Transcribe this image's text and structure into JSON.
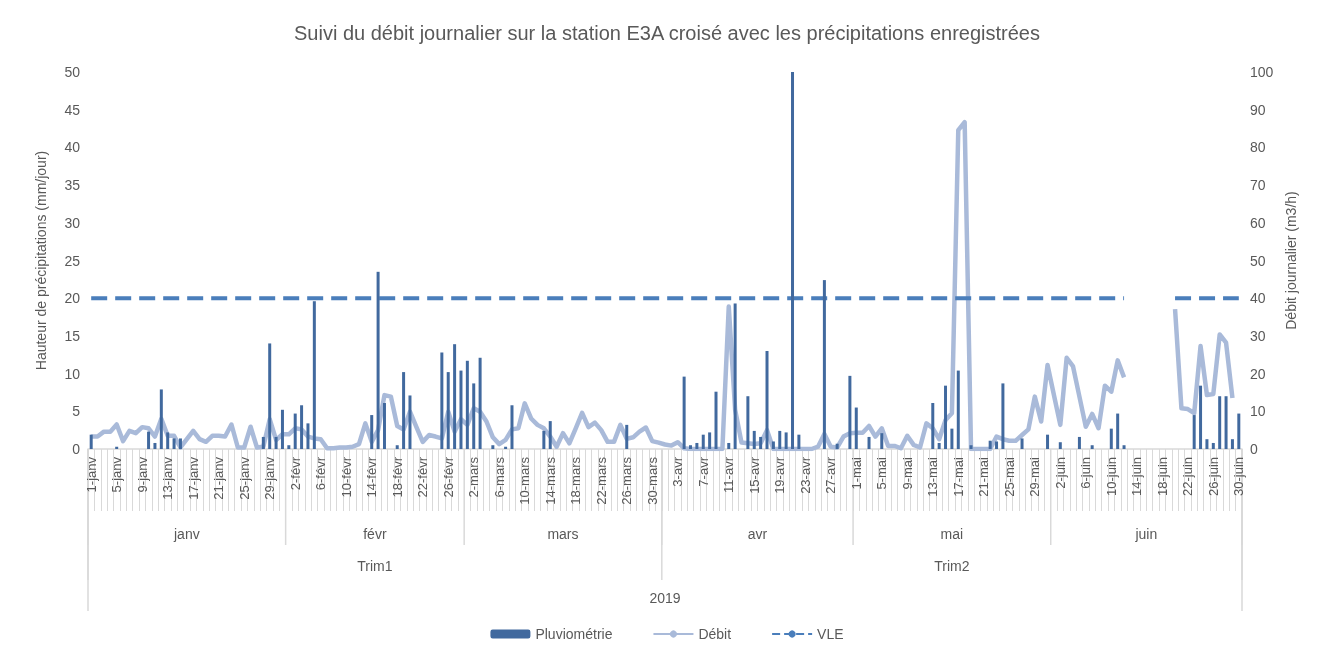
{
  "chart_data": {
    "type": "bar",
    "title": "Suivi du débit journalier sur la station E3A croisé avec les précipitations enregistrées",
    "ylabel": "Hauteur de précipitations (mm/jour)",
    "y2label": "Débit journalier (m3/h)",
    "annotations": [
      "janv",
      "févr",
      "mars",
      "avr",
      "mai",
      "juin",
      "Trim1",
      "Trim2",
      "2019"
    ],
    "x": [
      "2019-01-01",
      "2019-01-02",
      "2019-01-03",
      "2019-01-04",
      "2019-01-05",
      "2019-01-06",
      "2019-01-07",
      "2019-01-08",
      "2019-01-09",
      "2019-01-10",
      "2019-01-11",
      "2019-01-12",
      "2019-01-13",
      "2019-01-14",
      "2019-01-15",
      "2019-01-16",
      "2019-01-17",
      "2019-01-18",
      "2019-01-19",
      "2019-01-20",
      "2019-01-21",
      "2019-01-22",
      "2019-01-23",
      "2019-01-24",
      "2019-01-25",
      "2019-01-26",
      "2019-01-27",
      "2019-01-28",
      "2019-01-29",
      "2019-01-30",
      "2019-01-31",
      "2019-02-01",
      "2019-02-02",
      "2019-02-03",
      "2019-02-04",
      "2019-02-05",
      "2019-02-06",
      "2019-02-07",
      "2019-02-08",
      "2019-02-09",
      "2019-02-10",
      "2019-02-11",
      "2019-02-12",
      "2019-02-13",
      "2019-02-14",
      "2019-02-15",
      "2019-02-16",
      "2019-02-17",
      "2019-02-18",
      "2019-02-19",
      "2019-02-20",
      "2019-02-21",
      "2019-02-22",
      "2019-02-23",
      "2019-02-24",
      "2019-02-25",
      "2019-02-26",
      "2019-02-27",
      "2019-02-28",
      "2019-03-01",
      "2019-03-02",
      "2019-03-03",
      "2019-03-04",
      "2019-03-05",
      "2019-03-06",
      "2019-03-07",
      "2019-03-08",
      "2019-03-09",
      "2019-03-10",
      "2019-03-11",
      "2019-03-12",
      "2019-03-13",
      "2019-03-14",
      "2019-03-15",
      "2019-03-16",
      "2019-03-17",
      "2019-03-18",
      "2019-03-19",
      "2019-03-20",
      "2019-03-21",
      "2019-03-22",
      "2019-03-23",
      "2019-03-24",
      "2019-03-25",
      "2019-03-26",
      "2019-03-27",
      "2019-03-28",
      "2019-03-29",
      "2019-03-30",
      "2019-03-31",
      "2019-04-01",
      "2019-04-02",
      "2019-04-03",
      "2019-04-04",
      "2019-04-05",
      "2019-04-06",
      "2019-04-07",
      "2019-04-08",
      "2019-04-09",
      "2019-04-10",
      "2019-04-11",
      "2019-04-12",
      "2019-04-13",
      "2019-04-14",
      "2019-04-15",
      "2019-04-16",
      "2019-04-17",
      "2019-04-18",
      "2019-04-19",
      "2019-04-20",
      "2019-04-21",
      "2019-04-22",
      "2019-04-23",
      "2019-04-24",
      "2019-04-25",
      "2019-04-26",
      "2019-04-27",
      "2019-04-28",
      "2019-04-29",
      "2019-04-30",
      "2019-05-01",
      "2019-05-02",
      "2019-05-03",
      "2019-05-04",
      "2019-05-05",
      "2019-05-06",
      "2019-05-07",
      "2019-05-08",
      "2019-05-09",
      "2019-05-10",
      "2019-05-11",
      "2019-05-12",
      "2019-05-13",
      "2019-05-14",
      "2019-05-15",
      "2019-05-16",
      "2019-05-17",
      "2019-05-18",
      "2019-05-19",
      "2019-05-20",
      "2019-05-21",
      "2019-05-22",
      "2019-05-23",
      "2019-05-24",
      "2019-05-25",
      "2019-05-26",
      "2019-05-27",
      "2019-05-28",
      "2019-05-29",
      "2019-05-30",
      "2019-05-31",
      "2019-06-01",
      "2019-06-02",
      "2019-06-03",
      "2019-06-04",
      "2019-06-05",
      "2019-06-06",
      "2019-06-07",
      "2019-06-08",
      "2019-06-09",
      "2019-06-10",
      "2019-06-11",
      "2019-06-12",
      "2019-06-13",
      "2019-06-14",
      "2019-06-15",
      "2019-06-16",
      "2019-06-17",
      "2019-06-18",
      "2019-06-19",
      "2019-06-20",
      "2019-06-21",
      "2019-06-22",
      "2019-06-23",
      "2019-06-24",
      "2019-06-25",
      "2019-06-26",
      "2019-06-27",
      "2019-06-28",
      "2019-06-29",
      "2019-06-30"
    ],
    "xlim": [
      "2018-12-31T12:00",
      "2019-06-30T12:00"
    ],
    "xticks": [
      {
        "value": "2019-01-01",
        "label": "1-janv"
      },
      {
        "value": "2019-01-05",
        "label": "5-janv"
      },
      {
        "value": "2019-01-09",
        "label": "9-janv"
      },
      {
        "value": "2019-01-13",
        "label": "13-janv"
      },
      {
        "value": "2019-01-17",
        "label": "17-janv"
      },
      {
        "value": "2019-01-21",
        "label": "21-janv"
      },
      {
        "value": "2019-01-25",
        "label": "25-janv"
      },
      {
        "value": "2019-01-29",
        "label": "29-janv"
      },
      {
        "value": "2019-02-02",
        "label": "2-févr"
      },
      {
        "value": "2019-02-06",
        "label": "6-févr"
      },
      {
        "value": "2019-02-10",
        "label": "10-févr"
      },
      {
        "value": "2019-02-14",
        "label": "14-févr"
      },
      {
        "value": "2019-02-18",
        "label": "18-févr"
      },
      {
        "value": "2019-02-22",
        "label": "22-févr"
      },
      {
        "value": "2019-02-26",
        "label": "26-févr"
      },
      {
        "value": "2019-03-02",
        "label": "2-mars"
      },
      {
        "value": "2019-03-06",
        "label": "6-mars"
      },
      {
        "value": "2019-03-10",
        "label": "10-mars"
      },
      {
        "value": "2019-03-14",
        "label": "14-mars"
      },
      {
        "value": "2019-03-18",
        "label": "18-mars"
      },
      {
        "value": "2019-03-22",
        "label": "22-mars"
      },
      {
        "value": "2019-03-26",
        "label": "26-mars"
      },
      {
        "value": "2019-03-30",
        "label": "30-mars"
      },
      {
        "value": "2019-04-03",
        "label": "3-avr"
      },
      {
        "value": "2019-04-07",
        "label": "7-avr"
      },
      {
        "value": "2019-04-11",
        "label": "11-avr"
      },
      {
        "value": "2019-04-15",
        "label": "15-avr"
      },
      {
        "value": "2019-04-19",
        "label": "19-avr"
      },
      {
        "value": "2019-04-23",
        "label": "23-avr"
      },
      {
        "value": "2019-04-27",
        "label": "27-avr"
      },
      {
        "value": "2019-05-01",
        "label": "1-mai"
      },
      {
        "value": "2019-05-05",
        "label": "5-mai"
      },
      {
        "value": "2019-05-09",
        "label": "9-mai"
      },
      {
        "value": "2019-05-13",
        "label": "13-mai"
      },
      {
        "value": "2019-05-17",
        "label": "17-mai"
      },
      {
        "value": "2019-05-21",
        "label": "21-mai"
      },
      {
        "value": "2019-05-25",
        "label": "25-mai"
      },
      {
        "value": "2019-05-29",
        "label": "29-mai"
      },
      {
        "value": "2019-06-02",
        "label": "2-juin"
      },
      {
        "value": "2019-06-06",
        "label": "6-juin"
      },
      {
        "value": "2019-06-10",
        "label": "10-juin"
      },
      {
        "value": "2019-06-14",
        "label": "14-juin"
      },
      {
        "value": "2019-06-18",
        "label": "18-juin"
      },
      {
        "value": "2019-06-22",
        "label": "22-juin"
      },
      {
        "value": "2019-06-26",
        "label": "26-juin"
      },
      {
        "value": "2019-06-30",
        "label": "30-juin"
      }
    ],
    "ylim": [
      0,
      50
    ],
    "yticks": [
      0,
      5,
      10,
      15,
      20,
      25,
      30,
      35,
      40,
      45,
      50
    ],
    "y2lim": [
      0,
      100
    ],
    "y2ticks": [
      0,
      10,
      20,
      30,
      40,
      50,
      60,
      70,
      80,
      90,
      100
    ],
    "legend": "bottom",
    "marker": "none",
    "series": [
      {
        "name": "Pluviométrie",
        "color": "#41699e",
        "values": [
          1.9,
          0,
          0,
          0,
          0.3,
          0,
          0,
          0,
          0,
          2.3,
          0.8,
          7.9,
          2.2,
          1.4,
          1.4,
          0,
          0,
          0,
          0,
          0,
          0,
          0,
          0,
          0,
          0,
          0,
          0,
          1.6,
          14,
          1.6,
          5.2,
          0.5,
          4.7,
          5.8,
          3.4,
          19.6,
          0,
          0,
          0,
          0,
          0,
          0,
          0,
          0,
          4.5,
          23.5,
          6.1,
          0,
          0.5,
          10.2,
          7.1,
          0,
          0,
          0,
          0,
          12.8,
          10.2,
          13.9,
          10.4,
          11.7,
          8.7,
          12.1,
          0,
          0.5,
          0,
          0.3,
          5.8,
          0,
          0,
          0,
          0,
          2.4,
          3.7,
          0,
          0,
          0,
          0,
          0,
          0,
          0,
          0,
          0,
          0,
          0,
          3.2,
          0,
          0,
          0,
          0,
          0,
          0,
          0,
          0,
          9.6,
          0.5,
          0.8,
          1.9,
          2.2,
          7.6,
          0,
          0.8,
          19.3,
          0,
          7,
          2.4,
          1.6,
          13,
          1,
          2.4,
          2.2,
          50,
          1.9,
          0,
          0,
          0,
          22.4,
          0,
          0.7,
          0,
          9.7,
          5.5,
          0,
          1.6,
          0,
          2.1,
          0,
          0,
          0,
          0,
          0,
          0,
          0,
          6.1,
          0.8,
          8.4,
          2.7,
          10.4,
          0,
          0.5,
          0,
          0,
          1.1,
          1,
          8.7,
          0,
          0,
          1.4,
          0,
          0,
          0,
          1.9,
          0,
          0.9,
          0,
          0,
          1.6,
          0,
          0.5,
          0,
          0,
          2.7,
          4.7,
          0.5,
          0,
          0,
          0,
          0,
          0,
          0,
          0,
          0,
          0,
          0,
          4.5,
          8.4,
          1.3,
          0.8,
          7,
          7,
          1.3,
          4.7
        ]
      },
      {
        "name": "Débit",
        "type": "line",
        "axis": "y2",
        "color": "#a9bad9",
        "line_style": "solid",
        "values": [
          3.3,
          3.3,
          4.6,
          4.6,
          6.5,
          2.1,
          4.8,
          4.2,
          5.8,
          5.5,
          3.3,
          8,
          3.5,
          3.5,
          0.4,
          2.6,
          4.8,
          2.6,
          1.9,
          3.5,
          3.5,
          3.3,
          6.5,
          0.4,
          0.4,
          5.9,
          0.4,
          0.6,
          7.9,
          2.4,
          3.9,
          3.9,
          5.5,
          5.2,
          3.3,
          2.8,
          2.6,
          0.2,
          0.2,
          0.4,
          0.4,
          0.6,
          1.3,
          6.8,
          1.9,
          5,
          14.3,
          13.9,
          6.1,
          5.2,
          9.9,
          5.9,
          1.9,
          3.7,
          3.3,
          2.8,
          9.9,
          4.6,
          7.9,
          6.4,
          10.8,
          9.9,
          7.3,
          3.1,
          1.3,
          2.4,
          5.2,
          5.5,
          12.1,
          8.1,
          6.4,
          5.5,
          3.3,
          0.6,
          4.2,
          1.5,
          5.5,
          9.6,
          5.8,
          7,
          5,
          1.9,
          1.9,
          6.4,
          2.7,
          3.1,
          4.6,
          5.7,
          2.1,
          1.7,
          1.2,
          0.9,
          1.8,
          0.2,
          0,
          0,
          0,
          0,
          0,
          0,
          37.8,
          10.4,
          1.7,
          1.5,
          1.3,
          1.5,
          5,
          0,
          0,
          0,
          0,
          0,
          0,
          0,
          0.6,
          4,
          0.6,
          0.4,
          3.3,
          4.2,
          4.3,
          4.3,
          6.1,
          3.3,
          5.5,
          0.8,
          0.8,
          0.2,
          3.5,
          1.1,
          0.4,
          6.8,
          5.5,
          2.6,
          7.7,
          9.5,
          84.6,
          86.7,
          0,
          0,
          0,
          0,
          3.3,
          2.6,
          2.2,
          2.2,
          3.7,
          5.2,
          13.9,
          7.3,
          22.3,
          14.3,
          6.4,
          24.2,
          21.9,
          13.9,
          5.9,
          9.3,
          5.5,
          16.8,
          15.2,
          23.5,
          19,
          null,
          null,
          null,
          null,
          null,
          null,
          null,
          37.1,
          10.8,
          10.6,
          9.5,
          27.3,
          14.3,
          14.6,
          30.4,
          28.2,
          13.5,
          null
        ]
      },
      {
        "name": "VLE",
        "type": "line",
        "axis": "y2",
        "color": "#4a7ebb",
        "line_style": "dashed",
        "values": [
          40,
          40,
          40,
          40,
          40,
          40,
          40,
          40,
          40,
          40,
          40,
          40,
          40,
          40,
          40,
          40,
          40,
          40,
          40,
          40,
          40,
          40,
          40,
          40,
          40,
          40,
          40,
          40,
          40,
          40,
          40,
          40,
          40,
          40,
          40,
          40,
          40,
          40,
          40,
          40,
          40,
          40,
          40,
          40,
          40,
          40,
          40,
          40,
          40,
          40,
          40,
          40,
          40,
          40,
          40,
          40,
          40,
          40,
          40,
          40,
          40,
          40,
          40,
          40,
          40,
          40,
          40,
          40,
          40,
          40,
          40,
          40,
          40,
          40,
          40,
          40,
          40,
          40,
          40,
          40,
          40,
          40,
          40,
          40,
          40,
          40,
          40,
          40,
          40,
          40,
          40,
          40,
          40,
          40,
          40,
          40,
          40,
          40,
          40,
          40,
          40,
          40,
          40,
          40,
          40,
          40,
          40,
          40,
          40,
          40,
          40,
          40,
          40,
          40,
          40,
          40,
          40,
          40,
          40,
          40,
          40,
          40,
          40,
          40,
          40,
          40,
          40,
          40,
          40,
          40,
          40,
          40,
          40,
          40,
          40,
          40,
          40,
          40,
          40,
          40,
          40,
          40,
          40,
          40,
          40,
          40,
          40,
          40,
          40,
          40,
          40,
          40,
          40,
          40,
          40,
          40,
          40,
          40,
          40,
          40,
          40,
          40,
          40,
          null,
          null,
          null,
          null,
          null,
          null,
          null,
          40,
          40,
          40,
          40,
          40,
          40,
          40,
          40,
          40,
          40,
          40
        ]
      }
    ]
  }
}
